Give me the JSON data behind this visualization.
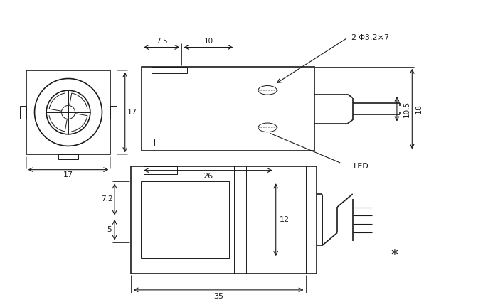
{
  "bg_color": "#ffffff",
  "line_color": "#1a1a1a",
  "lw": 1.2,
  "thin_lw": 0.7,
  "fig_width": 6.86,
  "fig_height": 4.22
}
